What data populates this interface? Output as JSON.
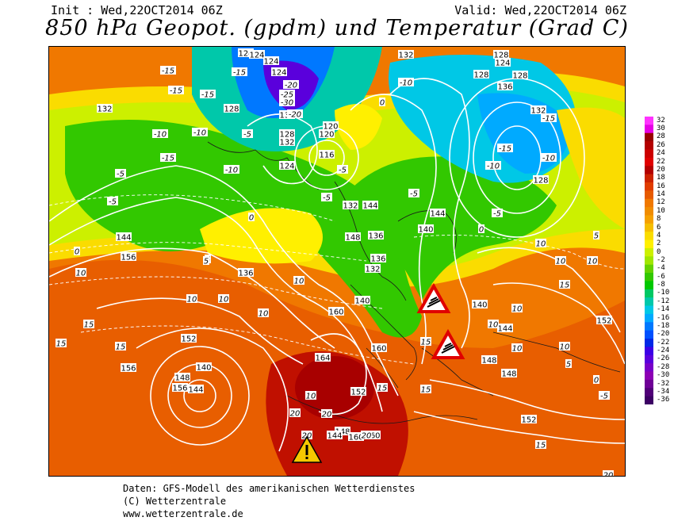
{
  "header": {
    "init": "Init : Wed,22OCT2014 06Z",
    "valid": "Valid: Wed,22OCT2014 06Z",
    "title": "850 hPa Geopot. (gpdm) und Temperatur (Grad C)"
  },
  "legend": {
    "values": [
      "32",
      "30",
      "28",
      "26",
      "24",
      "22",
      "20",
      "18",
      "16",
      "14",
      "12",
      "10",
      "8",
      "6",
      "4",
      "2",
      "0",
      "-2",
      "-4",
      "-6",
      "-8",
      "-10",
      "-12",
      "-14",
      "-16",
      "-18",
      "-20",
      "-22",
      "-24",
      "-26",
      "-28",
      "-30",
      "-32",
      "-34",
      "-36"
    ],
    "colors": [
      "#ff33ff",
      "#e600e6",
      "#990000",
      "#b30000",
      "#cc0000",
      "#e00000",
      "#b30000",
      "#cc2200",
      "#e03c00",
      "#e65a00",
      "#f07800",
      "#f08c00",
      "#f5a000",
      "#f5be00",
      "#fadc00",
      "#fff000",
      "#ccf000",
      "#a0e600",
      "#64d200",
      "#32c800",
      "#00c800",
      "#00c864",
      "#00c8aa",
      "#00c8e6",
      "#00aaff",
      "#0078ff",
      "#0050ff",
      "#0028e6",
      "#3c00e6",
      "#5a00dc",
      "#7800c8",
      "#8c00b4",
      "#6e0096",
      "#500078",
      "#3c0064"
    ]
  },
  "map_labels": {
    "geopotential": [
      "124",
      "124",
      "124",
      "132",
      "128",
      "128",
      "120",
      "116",
      "124",
      "136",
      "132",
      "132",
      "144",
      "148",
      "144",
      "140",
      "136",
      "136",
      "132",
      "124",
      "120",
      "128",
      "124",
      "128",
      "132",
      "128",
      "144",
      "152",
      "156",
      "148",
      "144",
      "140",
      "136",
      "140",
      "140",
      "144",
      "148",
      "148",
      "152",
      "152",
      "156",
      "156",
      "160",
      "164",
      "160",
      "152",
      "148",
      "144",
      "160",
      "160",
      "132",
      "128",
      "136"
    ],
    "temperature": [
      "-15",
      "-15",
      "-20",
      "-25",
      "-30",
      "-20",
      "-15",
      "-15",
      "-10",
      "-10",
      "-15",
      "-10",
      "-5",
      "-5",
      "-5",
      "0",
      "5",
      "-5",
      "-10",
      "0",
      "-5",
      "-10",
      "-15",
      "-15",
      "-10",
      "-5",
      "0",
      "5",
      "10",
      "10",
      "10",
      "10",
      "15",
      "15",
      "10",
      "10",
      "15",
      "15",
      "20",
      "20",
      "20",
      "20",
      "10",
      "10",
      "15",
      "15",
      "10",
      "10",
      "20",
      "-5",
      "0",
      "5",
      "10",
      "15",
      "15",
      "10",
      "10",
      "5",
      "0",
      "-5"
    ]
  },
  "warnings": [
    "warning-wind-adriatic",
    "warning-wind-italy",
    "warning-general-tunisia"
  ],
  "footer": {
    "line1": "Daten: GFS-Modell des amerikanischen Wetterdienstes",
    "line2": "(C) Wetterzentrale",
    "line3": "www.wetterzentrale.de"
  }
}
